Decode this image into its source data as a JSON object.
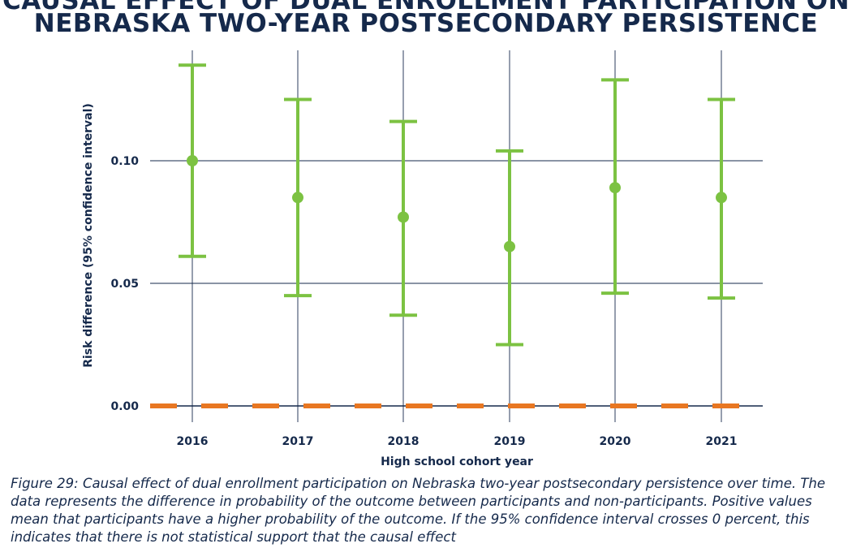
{
  "title": {
    "line1": "CAUSAL EFFECT OF DUAL ENROLLMENT PARTICIPATION ON",
    "line2": "NEBRASKA TWO-YEAR POSTSECONDARY PERSISTENCE"
  },
  "caption": "Figure 29: Causal effect of dual enrollment participation on Nebraska two-year postsecondary persistence over time. The data represents the difference in probability of the outcome between participants and non-participants. Positive values mean that participants have a higher probability of the outcome. If the 95% confidence interval crosses 0 percent, this indicates that there is not statistical support that the causal effect",
  "colors": {
    "estimate": "#7cc242",
    "zero_line": "#e87722",
    "grid": "#15294b",
    "text": "#15294b"
  },
  "chart_data": {
    "type": "scatter",
    "title": "CAUSAL EFFECT OF DUAL ENROLLMENT PARTICIPATION ON NEBRASKA TWO-YEAR POSTSECONDARY PERSISTENCE",
    "xlabel": "High school cohort year",
    "ylabel": "Risk difference (95% confidence interval)",
    "categories": [
      "2016",
      "2017",
      "2018",
      "2019",
      "2020",
      "2021"
    ],
    "estimates": [
      0.1,
      0.085,
      0.077,
      0.065,
      0.089,
      0.085
    ],
    "ci_lower": [
      0.061,
      0.045,
      0.037,
      0.025,
      0.046,
      0.044
    ],
    "ci_upper": [
      0.139,
      0.125,
      0.116,
      0.104,
      0.133,
      0.125
    ],
    "yticks": [
      "0.00",
      "0.05",
      "0.10"
    ],
    "ylim": [
      0.0,
      0.145
    ],
    "reference_line": 0.0,
    "grid": true
  }
}
